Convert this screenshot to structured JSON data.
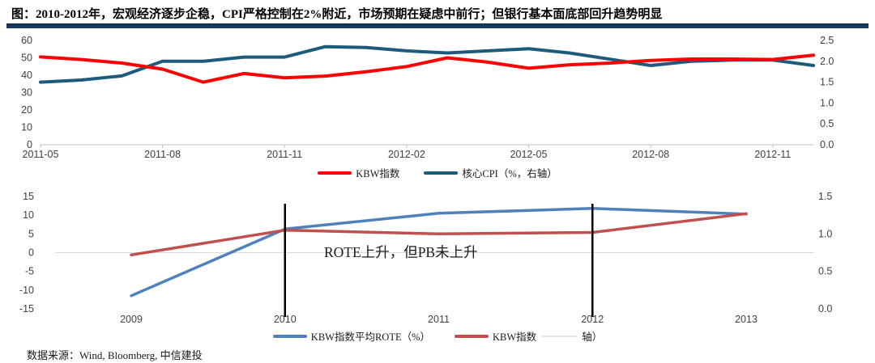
{
  "title": "图：2010-2012年，宏观经济逐步企稳，CPI严格控制在2%附近，市场预期在疑虑中前行；但银行基本面底部回升趋势明显",
  "footer": {
    "source": "数据来源：Wind, Bloomberg, 中信建投"
  },
  "colors": {
    "accent_bar": "#17375E",
    "accent_bar_edge": "#0f2440",
    "kbw_red": "#FE0000",
    "cpi_blue": "#1D5B7C",
    "rote_blue": "#4F81BD",
    "pb_red": "#C0504D",
    "axis_text": "#404040",
    "axis_line": "#BFBFBF",
    "gridline": "#D9D9D9",
    "vline_black": "#000000"
  },
  "chart_data": [
    {
      "type": "line",
      "title": "",
      "x": [
        "2011-05",
        "2011-06",
        "2011-07",
        "2011-08",
        "2011-09",
        "2011-10",
        "2011-11",
        "2011-12",
        "2012-01",
        "2012-02",
        "2012-03",
        "2012-04",
        "2012-05",
        "2012-06",
        "2012-07",
        "2012-08",
        "2012-09",
        "2012-10",
        "2012-11",
        "2012-12"
      ],
      "x_tick_labels": [
        "2011-05",
        "2011-08",
        "2011-11",
        "2012-02",
        "2012-05",
        "2012-08",
        "2012-11"
      ],
      "x_tick_indices": [
        0,
        3,
        6,
        9,
        12,
        15,
        18
      ],
      "left_axis": {
        "min": 0,
        "max": 60,
        "tick_labels": [
          "0",
          "10",
          "20",
          "30",
          "40",
          "50",
          "60"
        ],
        "ticks": [
          0,
          10,
          20,
          30,
          40,
          50,
          60
        ]
      },
      "right_axis": {
        "min": 0,
        "max": 2.5,
        "tick_labels": [
          "0.0",
          "0.5",
          "1.0",
          "1.5",
          "2.0",
          "2.5"
        ],
        "ticks": [
          0,
          0.5,
          1,
          1.5,
          2,
          2.5
        ]
      },
      "grid": "off",
      "legend_position": "bottom-center",
      "series": [
        {
          "name": "核心CPI（%，右轴）",
          "axis": "right",
          "color_key": "cpi_blue",
          "values": [
            1.5,
            1.55,
            1.65,
            2.0,
            2.0,
            2.1,
            2.1,
            2.35,
            2.33,
            2.25,
            2.2,
            2.25,
            2.3,
            2.2,
            2.05,
            1.9,
            2.0,
            2.03,
            2.03,
            1.9
          ]
        },
        {
          "name": "KBW指数",
          "axis": "left",
          "color_key": "kbw_red",
          "values": [
            50.5,
            49,
            47,
            43.5,
            36,
            41,
            38.5,
            39.5,
            42,
            45,
            50,
            47.5,
            44,
            46,
            47,
            48.5,
            49.3,
            49.3,
            49,
            51.5
          ]
        }
      ]
    },
    {
      "type": "line",
      "title": "",
      "x": [
        "2009",
        "2010",
        "2011",
        "2012",
        "2013"
      ],
      "x_tick_labels": [
        "2009",
        "2010",
        "2011",
        "2012",
        "2013"
      ],
      "x_tick_indices": [
        0,
        1,
        2,
        3,
        4
      ],
      "left_axis": {
        "min": -15,
        "max": 15,
        "tick_labels": [
          "-15",
          "-10",
          "-5",
          "0",
          "5",
          "10",
          "15"
        ],
        "ticks": [
          -15,
          -10,
          -5,
          0,
          5,
          10,
          15
        ]
      },
      "right_axis": {
        "min": 0,
        "max": 1.5,
        "tick_labels": [
          "0.0",
          "0.5",
          "1.0",
          "1.5"
        ],
        "ticks": [
          0,
          0.5,
          1,
          1.5
        ]
      },
      "grid": "zero-line-only",
      "gridline_at": 0,
      "annotation": "ROTE上升，但PB未上升",
      "vertical_lines": [
        "2010",
        "2012"
      ],
      "legend_position": "bottom-center",
      "series": [
        {
          "name": "KBW指数平均ROTE（%）",
          "axis": "left",
          "color_key": "rote_blue",
          "values": [
            -11.5,
            6.3,
            10.5,
            11.8,
            10.3
          ]
        },
        {
          "legend_prefix": "KBW指数",
          "legend_suffix": "轴）",
          "axis": "right",
          "color_key": "pb_red",
          "values": [
            0.72,
            1.05,
            1.0,
            1.02,
            1.27
          ]
        }
      ]
    }
  ]
}
